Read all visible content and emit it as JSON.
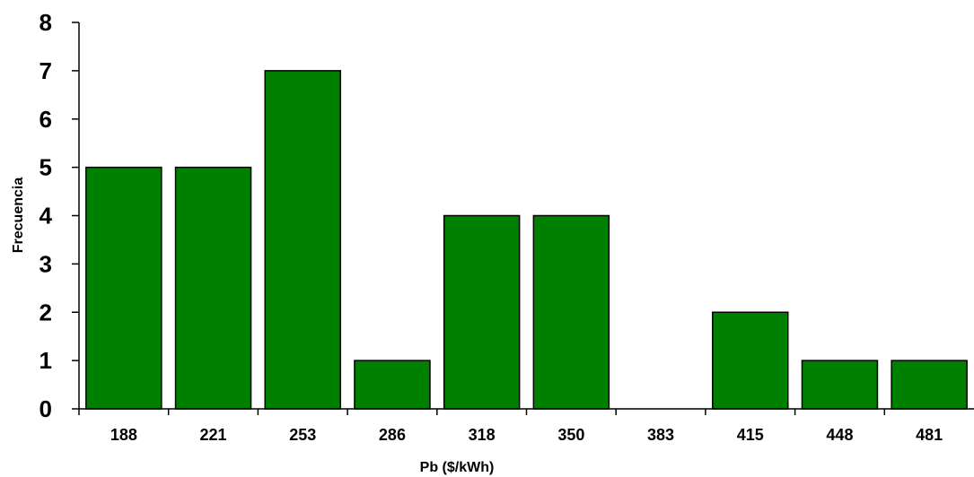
{
  "chart_data": {
    "type": "bar",
    "title": "",
    "xlabel": "Pb ($/kWh)",
    "ylabel": "Frecuencia",
    "categories": [
      "188",
      "221",
      "253",
      "286",
      "318",
      "350",
      "383",
      "415",
      "448",
      "481"
    ],
    "values": [
      5,
      5,
      7,
      1,
      4,
      4,
      0,
      2,
      1,
      1
    ],
    "ylim": [
      0,
      8
    ],
    "yticks": [
      "0",
      "1",
      "2",
      "3",
      "4",
      "5",
      "6",
      "7",
      "8"
    ],
    "grid": false,
    "legend": "none",
    "bar_color": "#008000",
    "bar_edge_color": "#000000"
  }
}
